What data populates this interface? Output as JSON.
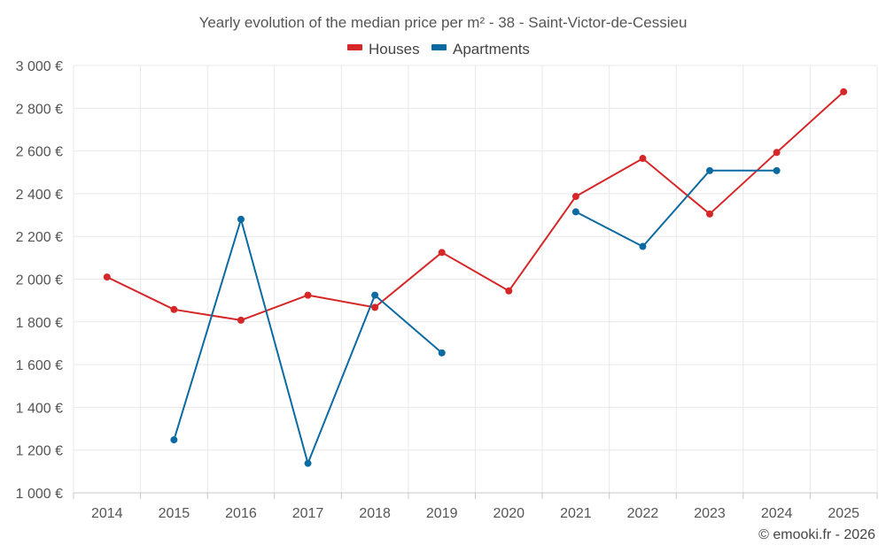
{
  "chart_data": {
    "type": "line",
    "title": "Yearly evolution of the median price per m² - 38 - Saint-Victor-de-Cessieu",
    "xlabel": "",
    "ylabel": "",
    "categories": [
      "2014",
      "2015",
      "2016",
      "2017",
      "2018",
      "2019",
      "2020",
      "2021",
      "2022",
      "2023",
      "2024",
      "2025"
    ],
    "ylim": [
      1000,
      3000
    ],
    "yticks": [
      1000,
      1200,
      1400,
      1600,
      1800,
      2000,
      2200,
      2400,
      2600,
      2800,
      3000
    ],
    "ytick_labels": [
      "1 000 €",
      "1 200 €",
      "1 400 €",
      "1 600 €",
      "1 800 €",
      "2 000 €",
      "2 200 €",
      "2 400 €",
      "2 600 €",
      "2 800 €",
      "3 000 €"
    ],
    "grid": true,
    "legend_position": "top-center",
    "series": [
      {
        "name": "Houses",
        "color": "#d62728",
        "values": [
          2010,
          1858,
          1808,
          1925,
          1868,
          2125,
          1945,
          2387,
          2565,
          2305,
          2593,
          2877
        ]
      },
      {
        "name": "Apartments",
        "color": "#0b6aa2",
        "values": [
          null,
          1248,
          2280,
          1138,
          1925,
          1655,
          null,
          2315,
          2153,
          2508,
          2508,
          null
        ]
      }
    ]
  },
  "credit": "© emooki.fr - 2026"
}
